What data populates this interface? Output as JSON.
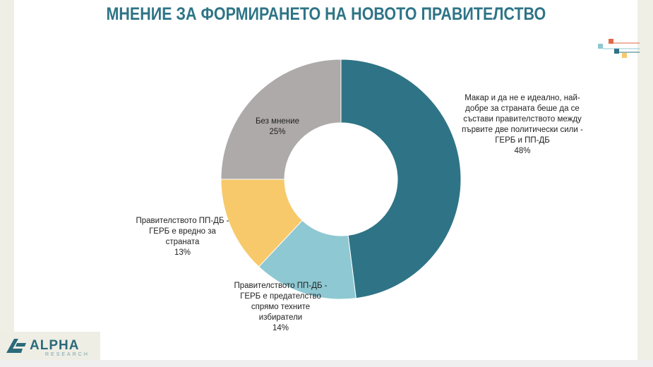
{
  "page": {
    "title": "МНЕНИЕ ЗА ФОРМИРАНЕТО НА НОВОТО ПРАВИТЕЛСТВО"
  },
  "brand": {
    "name": "ALPHA",
    "sub": "RESEARCH",
    "color": "#2a6a7a"
  },
  "chart_data": {
    "type": "pie",
    "variant": "donut",
    "categories": [
      "Макар и да не е идеално, най-добре за страната беше да се състави правителството между първите две политически сили - ГЕРБ и ПП-ДБ",
      "Правителството ПП-ДБ - ГЕРБ е предателство спрямо техните избиратели",
      "Правителството ПП-ДБ - ГЕРБ е вредно за страната",
      "Без мнение"
    ],
    "values": [
      48,
      14,
      13,
      25
    ],
    "value_labels": [
      "48%",
      "14%",
      "13%",
      "25%"
    ],
    "colors": [
      "#2e7486",
      "#8ec8d2",
      "#f7c96a",
      "#aeaaa9"
    ],
    "legend": "none"
  }
}
